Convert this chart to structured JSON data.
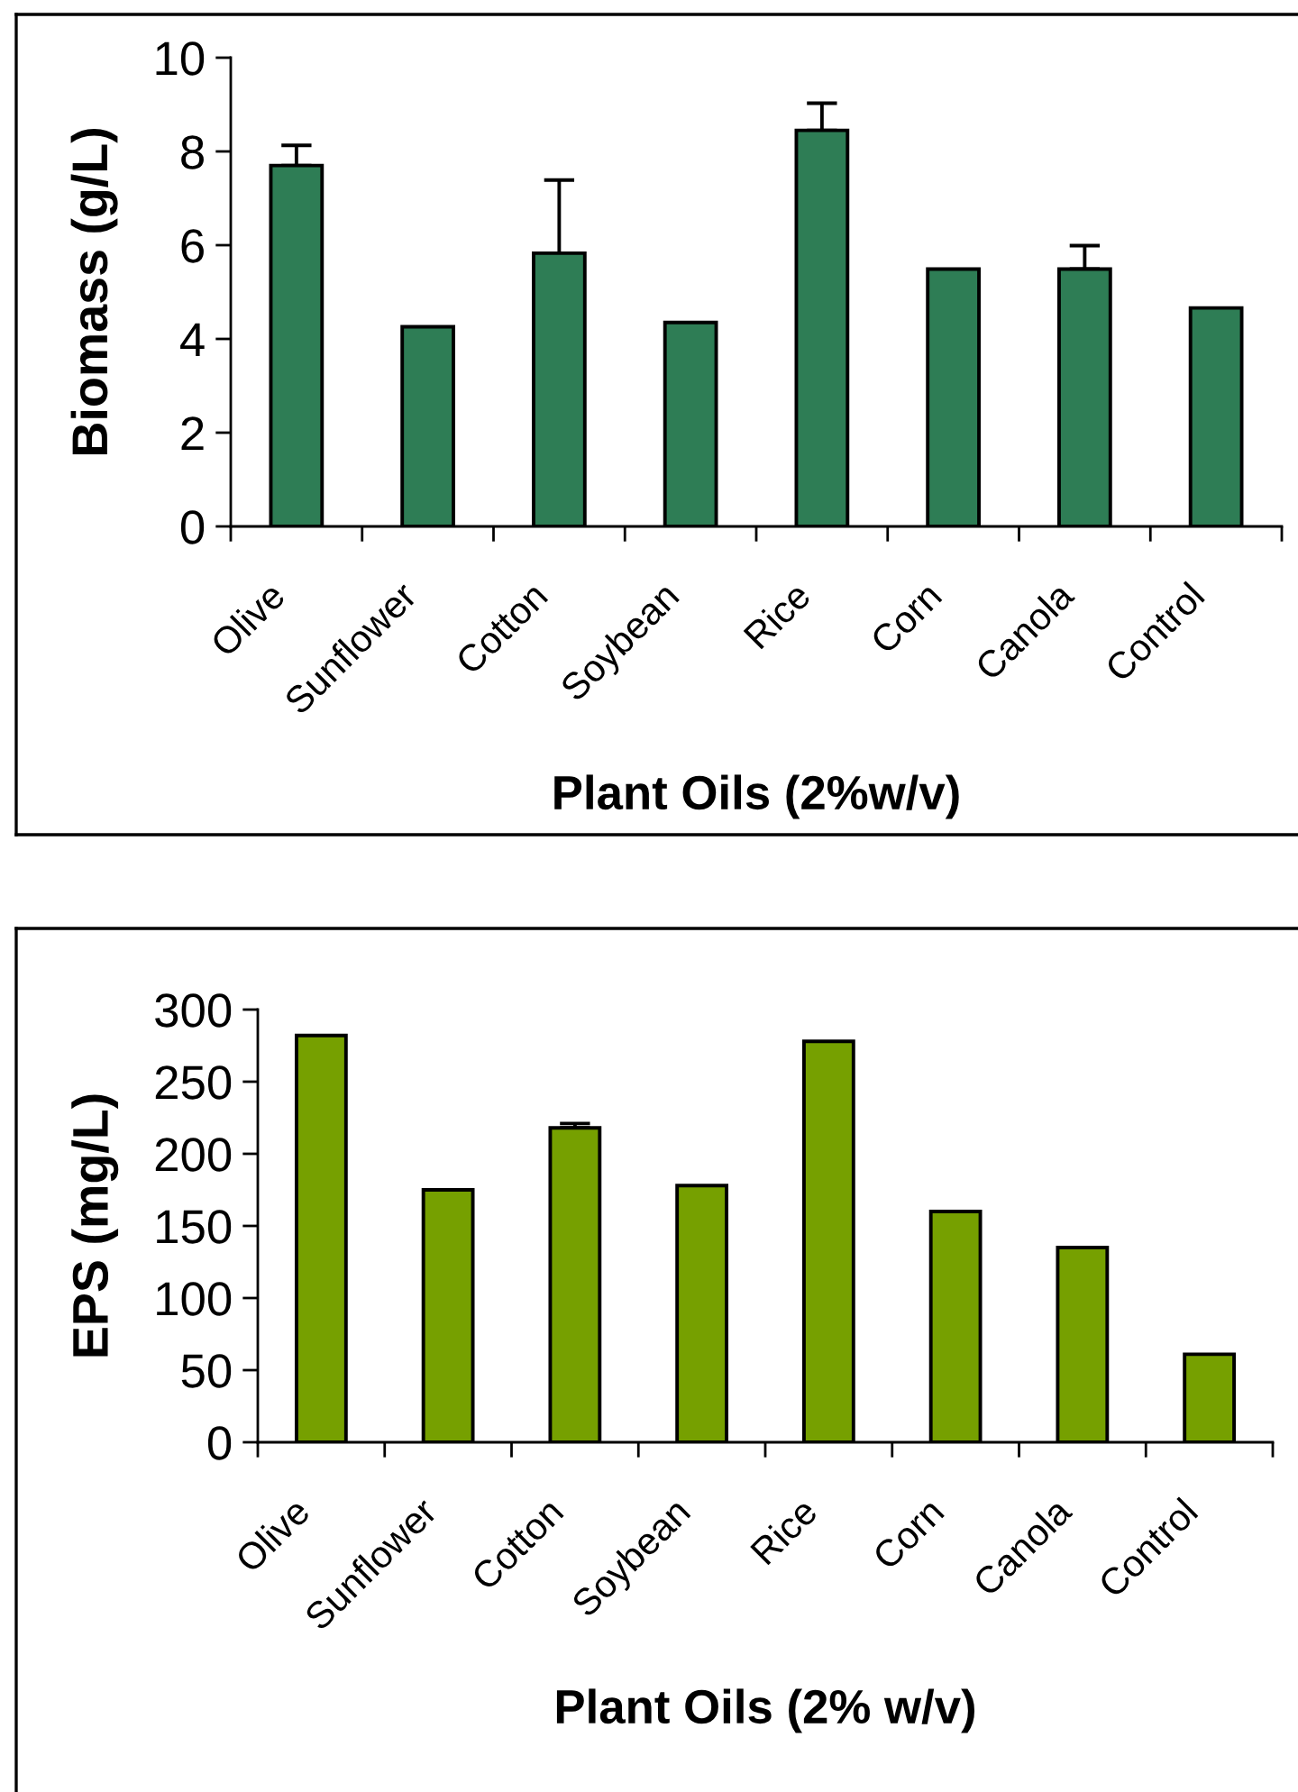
{
  "chart_data": [
    {
      "type": "bar",
      "xlabel": "Plant Oils (2%w/v)",
      "ylabel": "Biomass (g/L)",
      "categories": [
        "Olive",
        "Sunflower",
        "Cotton",
        "Soybean",
        "Rice",
        "Corn",
        "Canola",
        "Control"
      ],
      "values": [
        7.7,
        4.26,
        5.83,
        4.35,
        8.45,
        5.49,
        5.49,
        4.66
      ],
      "errors": [
        [
          7.7,
          8.13
        ],
        null,
        [
          5.83,
          7.39
        ],
        null,
        [
          8.45,
          9.03
        ],
        null,
        [
          5.49,
          5.99
        ],
        null
      ],
      "color": "#2e7d55",
      "ylim": [
        0,
        10
      ],
      "yticks": [
        0,
        2,
        4,
        6,
        8,
        10
      ]
    },
    {
      "type": "bar",
      "xlabel": "Plant Oils (2% w/v)",
      "ylabel": "EPS (mg/L)",
      "categories": [
        "Olive",
        "Sunflower",
        "Cotton",
        "Soybean",
        "Rice",
        "Corn",
        "Canola",
        "Control"
      ],
      "values": [
        282,
        175,
        218,
        178,
        278,
        160,
        135,
        61
      ],
      "errors": [
        null,
        null,
        [
          218,
          221
        ],
        null,
        null,
        null,
        null,
        null
      ],
      "color": "#76a000",
      "ylim": [
        0,
        300
      ],
      "yticks": [
        0,
        50,
        100,
        150,
        200,
        250,
        300
      ]
    }
  ]
}
